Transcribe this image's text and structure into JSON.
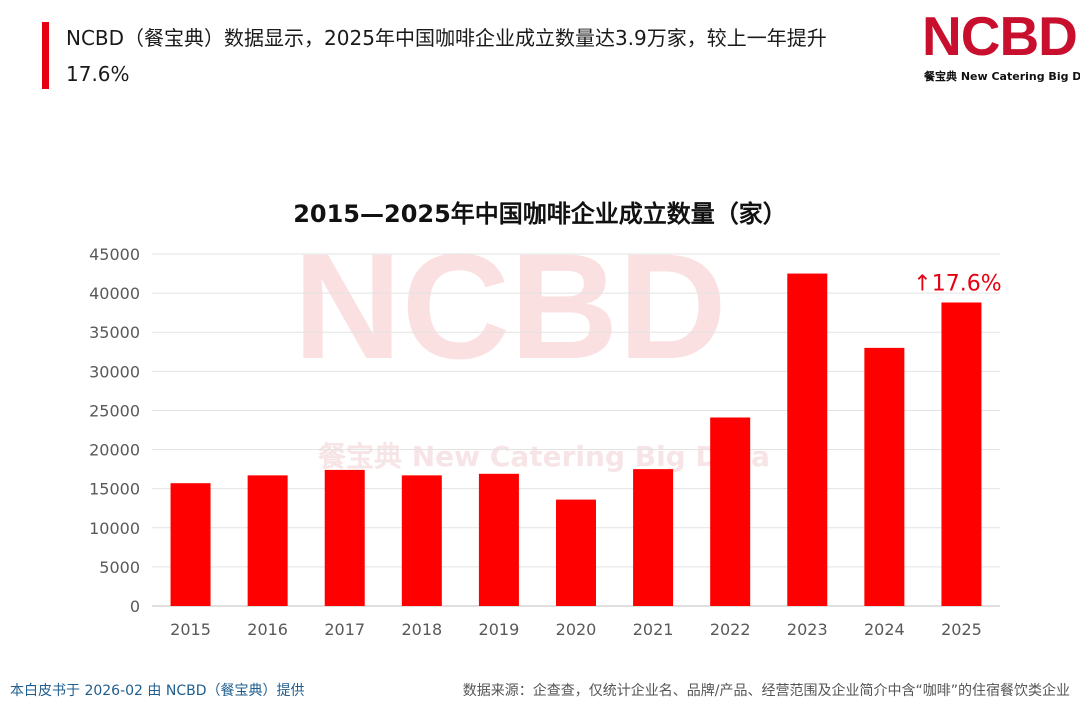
{
  "header": {
    "headline": "NCBD（餐宝典）数据显示，2025年中国咖啡企业成立数量达3.9万家，较上一年提升17.6%"
  },
  "logo": {
    "mark": "NCBD",
    "subtitle": "餐宝典 New Catering Big Data"
  },
  "watermark": {
    "mark": "NCBD",
    "subtitle": "餐宝典 New Catering Big Data"
  },
  "colors": {
    "accent": "#e60012",
    "bar": "#ff0000",
    "brand": "#c8102e"
  },
  "chart_data": {
    "type": "bar",
    "title": "2015—2025年中国咖啡企业成立数量（家）",
    "categories": [
      "2015",
      "2016",
      "2017",
      "2018",
      "2019",
      "2020",
      "2021",
      "2022",
      "2023",
      "2024",
      "2025"
    ],
    "values": [
      15700,
      16700,
      17400,
      16700,
      16900,
      13600,
      17500,
      24100,
      42500,
      33000,
      38800
    ],
    "ylim": [
      0,
      45000
    ],
    "yticks": [
      0,
      5000,
      10000,
      15000,
      20000,
      25000,
      30000,
      35000,
      40000,
      45000
    ],
    "grid": true,
    "annotation": {
      "text": "↑17.6%",
      "category": "2025"
    }
  },
  "footer": {
    "credit": "本白皮书于 2026-02 由 NCBD（餐宝典）提供",
    "source": "数据来源：企查查，仅统计企业名、品牌/产品、经营范围及企业简介中含“咖啡”的住宿餐饮类企业"
  }
}
